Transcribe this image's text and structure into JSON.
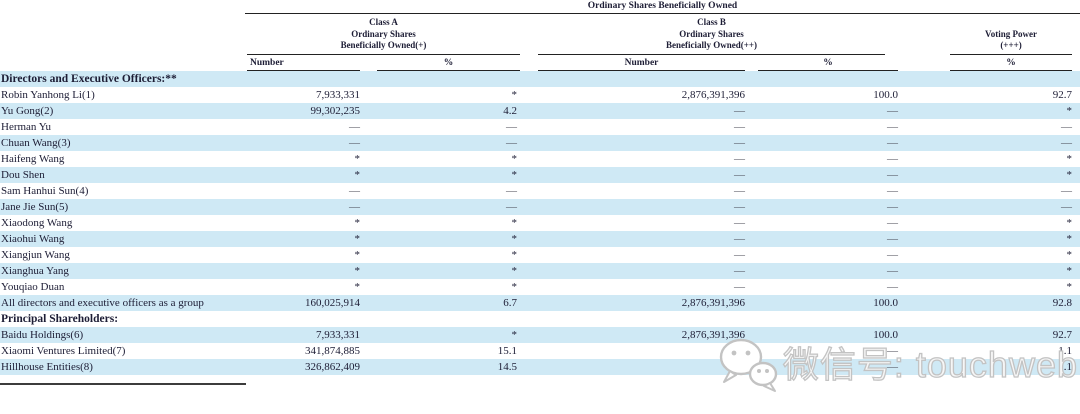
{
  "table": {
    "title": "Ordinary Shares Beneficially Owned",
    "groups": {
      "class_a": {
        "line1": "Class A",
        "line2": "Ordinary Shares",
        "line3": "Beneficially Owned(+)"
      },
      "class_b": {
        "line1": "Class B",
        "line2": "Ordinary Shares",
        "line3": "Beneficially Owned(++)"
      },
      "voting": {
        "line1": "Voting Power",
        "line2": "(+++)"
      }
    },
    "subheaders": {
      "number": "Number",
      "percent": "%"
    },
    "rows": [
      {
        "section": true,
        "name": "Directors and Executive Officers:**"
      },
      {
        "name": "Robin Yanhong Li(1)",
        "cells": [
          "7,933,331",
          "*",
          "2,876,391,396",
          "100.0",
          "92.7"
        ]
      },
      {
        "name": "Yu Gong(2)",
        "cells": [
          "99,302,235",
          "4.2",
          "—",
          "—",
          "*"
        ]
      },
      {
        "name": "Herman Yu",
        "cells": [
          "—",
          "—",
          "—",
          "—",
          "—"
        ]
      },
      {
        "name": "Chuan Wang(3)",
        "cells": [
          "—",
          "—",
          "—",
          "—",
          "—"
        ]
      },
      {
        "name": "Haifeng Wang",
        "cells": [
          "*",
          "*",
          "—",
          "—",
          "*"
        ]
      },
      {
        "name": "Dou Shen",
        "cells": [
          "*",
          "*",
          "—",
          "—",
          "*"
        ]
      },
      {
        "name": "Sam Hanhui Sun(4)",
        "cells": [
          "—",
          "—",
          "—",
          "—",
          "—"
        ]
      },
      {
        "name": "Jane Jie Sun(5)",
        "cells": [
          "—",
          "—",
          "—",
          "—",
          "—"
        ]
      },
      {
        "name": "Xiaodong Wang",
        "cells": [
          "*",
          "*",
          "—",
          "—",
          "*"
        ]
      },
      {
        "name": "Xiaohui Wang",
        "cells": [
          "*",
          "*",
          "—",
          "—",
          "*"
        ]
      },
      {
        "name": "Xiangjun Wang",
        "cells": [
          "*",
          "*",
          "—",
          "—",
          "*"
        ]
      },
      {
        "name": "Xianghua Yang",
        "cells": [
          "*",
          "*",
          "—",
          "—",
          "*"
        ]
      },
      {
        "name": "Youqiao Duan",
        "cells": [
          "*",
          "*",
          "—",
          "—",
          "*"
        ]
      },
      {
        "name": "All directors and executive officers as a group",
        "cells": [
          "160,025,914",
          "6.7",
          "2,876,391,396",
          "100.0",
          "92.8"
        ]
      },
      {
        "section": true,
        "name": "Principal Shareholders:"
      },
      {
        "name": "Baidu Holdings(6)",
        "cells": [
          "7,933,331",
          "*",
          "2,876,391,396",
          "100.0",
          "92.7"
        ]
      },
      {
        "name": "Xiaomi Ventures Limited(7)",
        "cells": [
          "341,874,885",
          "15.1",
          "—",
          "—",
          "1.1"
        ]
      },
      {
        "name": "Hillhouse Entities(8)",
        "cells": [
          "326,862,409",
          "14.5",
          "—",
          "—",
          "1.1"
        ]
      }
    ]
  },
  "watermark": {
    "text": "微信号: touchweb",
    "icon": "wechat-icon"
  },
  "colors": {
    "row_alt": "#cfe9f5",
    "text": "#1d1d35",
    "rule": "#222222",
    "watermark_gray": "#c3c3c3"
  }
}
